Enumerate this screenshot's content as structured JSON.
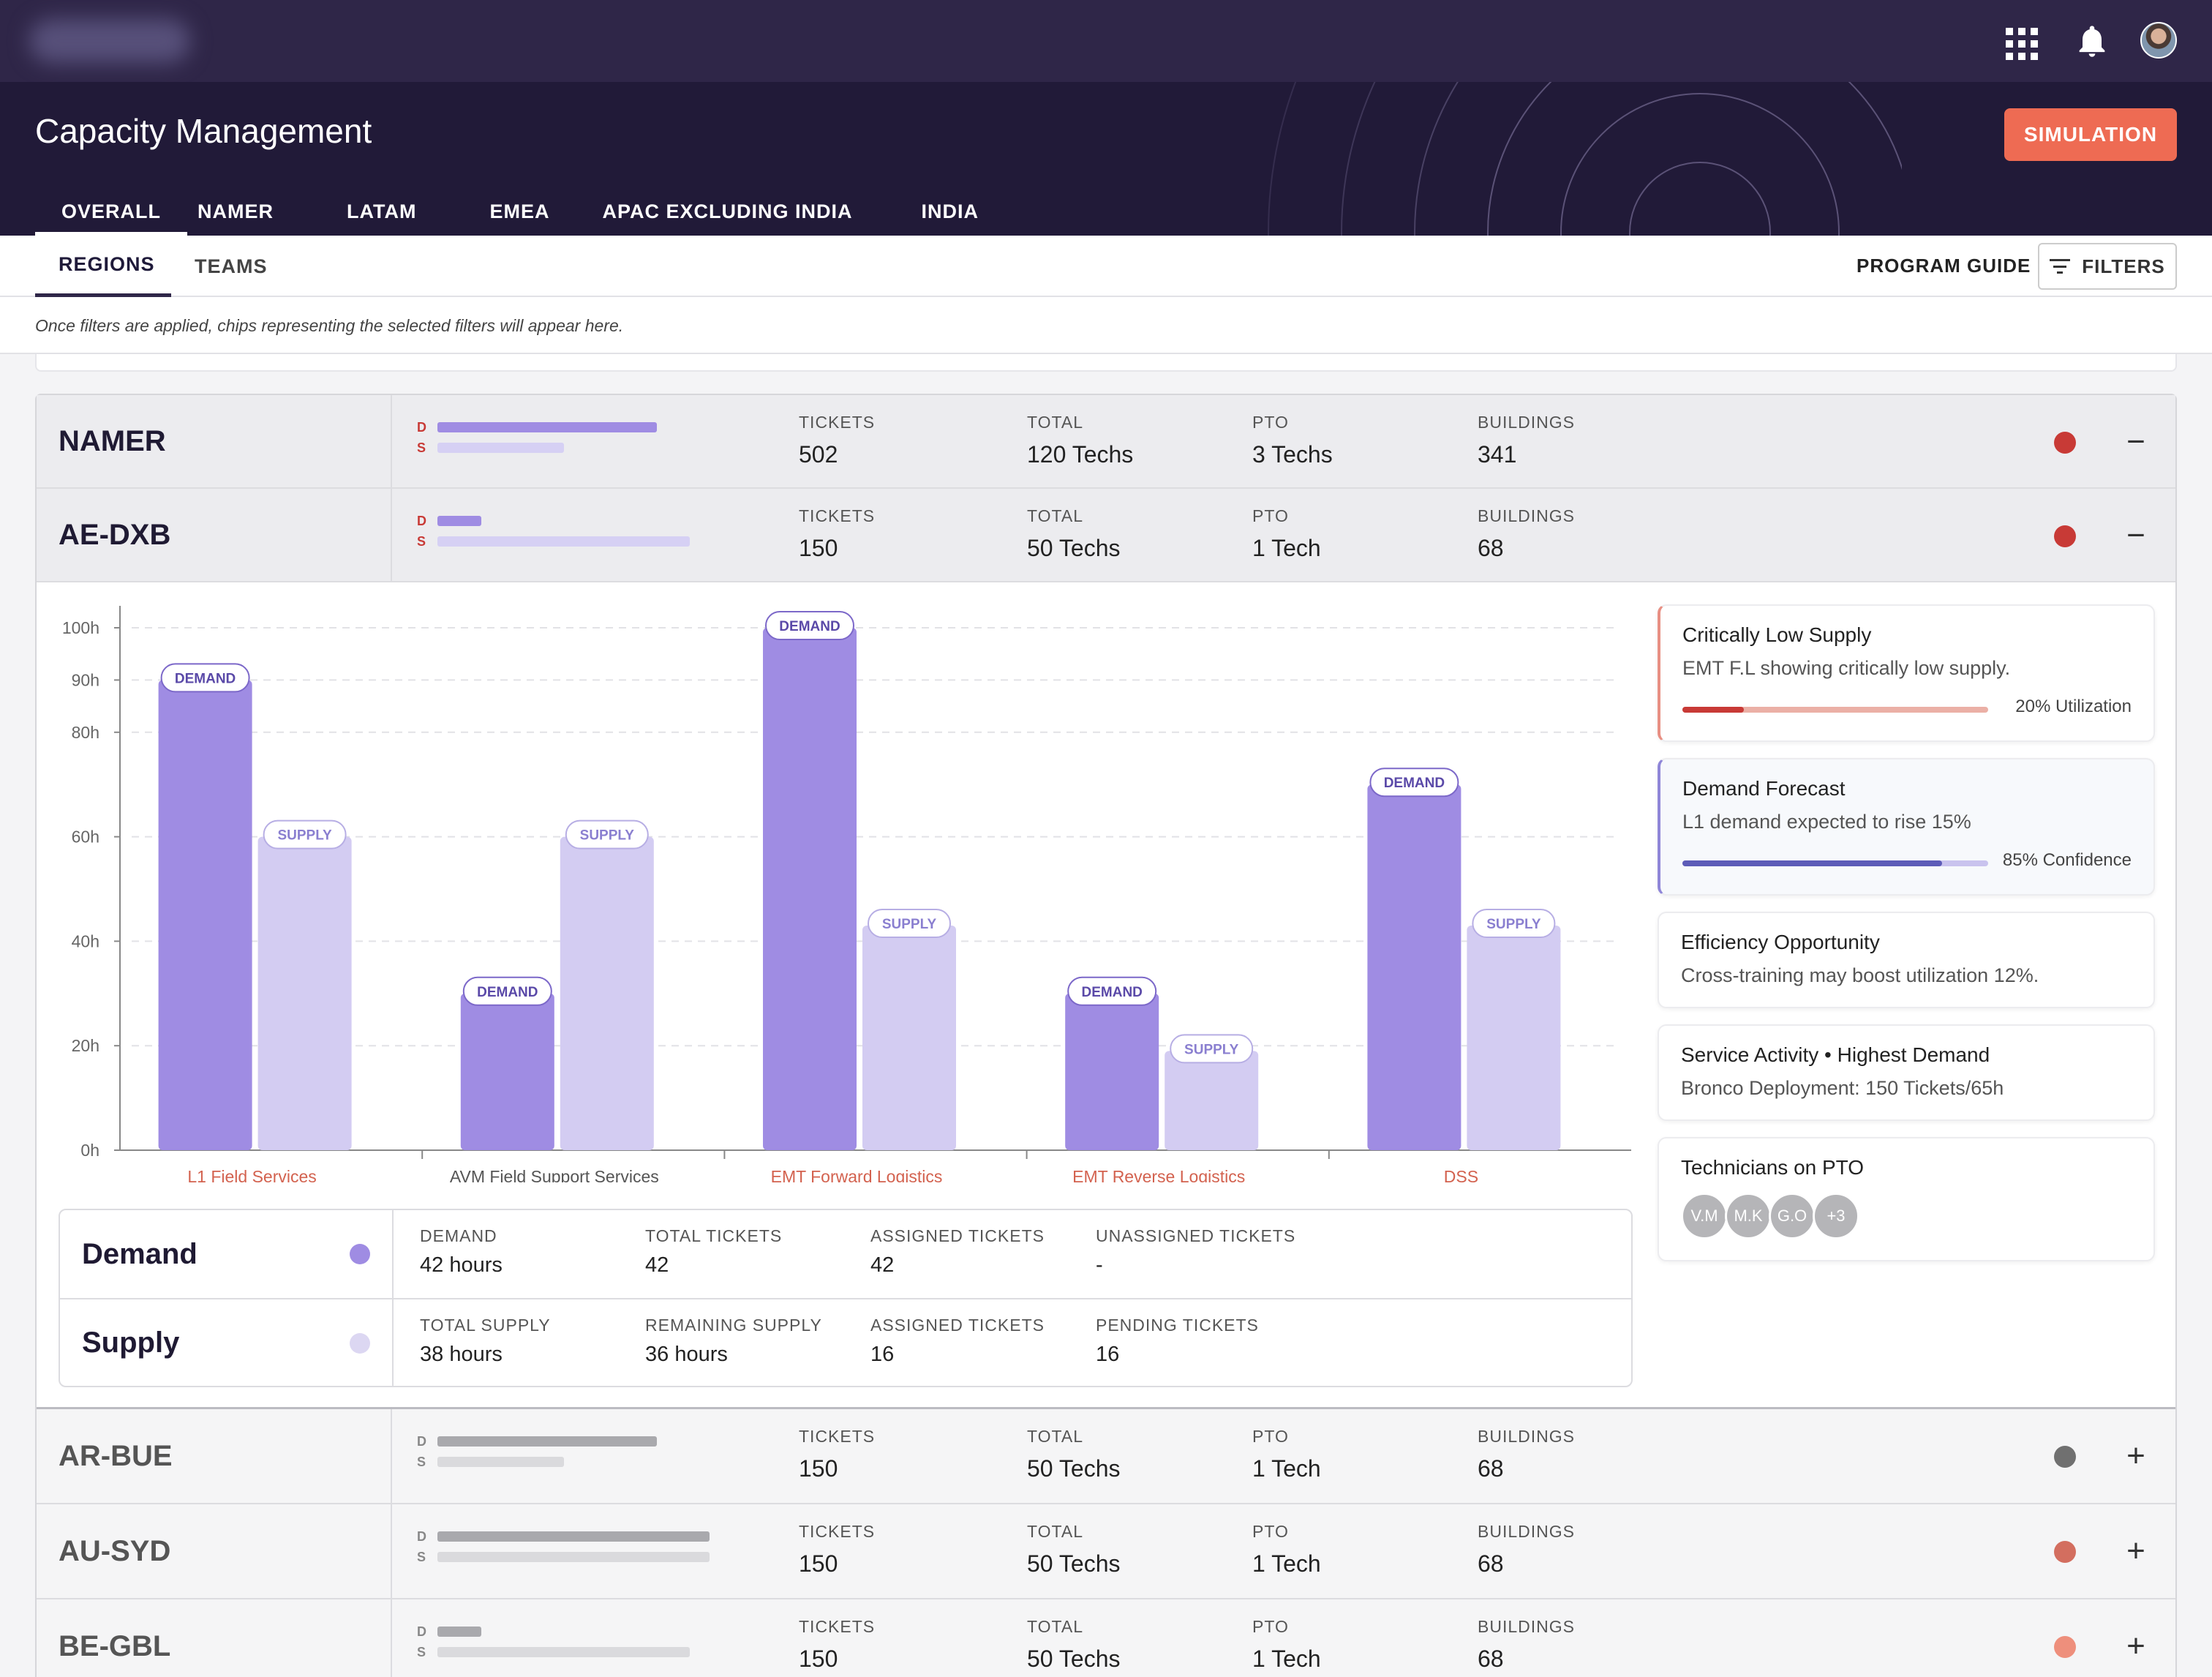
{
  "header": {
    "title": "Capacity Management",
    "simulation_label": "SIMULATION",
    "region_tabs": [
      "OVERALL",
      "NAMER",
      "LATAM",
      "EMEA",
      "APAC EXCLUDING INDIA",
      "INDIA"
    ]
  },
  "subnav": {
    "tabs": [
      "REGIONS",
      "TEAMS"
    ],
    "program_guide": "PROGRAM GUIDE",
    "filters": "FILTERS",
    "hint": "Once filters are applied, chips representing the selected filters will appear here."
  },
  "stat_labels": {
    "tickets": "TICKETS",
    "total": "TOTAL",
    "pto": "PTO",
    "buildings": "BUILDINGS"
  },
  "ds_labels": {
    "d": "D",
    "s": "S"
  },
  "rows": [
    {
      "name": "NAMER",
      "tickets": "502",
      "total": "120 Techs",
      "pto": "3 Techs",
      "buildings": "341",
      "status_color": "#c83a36",
      "toggle": "−",
      "demand_fraction": 0.4,
      "supply_fraction": 0.23
    },
    {
      "name": "AE-DXB",
      "tickets": "150",
      "total": "50 Techs",
      "pto": "1 Tech",
      "buildings": "68",
      "status_color": "#c83a36",
      "toggle": "−",
      "demand_fraction": 0.08,
      "supply_fraction": 0.46
    },
    {
      "name": "AR-BUE",
      "tickets": "150",
      "total": "50 Techs",
      "pto": "1 Tech",
      "buildings": "68",
      "status_color": "#707070",
      "toggle": "+",
      "demand_fraction": 0.4,
      "supply_fraction": 0.23
    },
    {
      "name": "AU-SYD",
      "tickets": "150",
      "total": "50 Techs",
      "pto": "1 Tech",
      "buildings": "68",
      "status_color": "#d36e5f",
      "toggle": "+",
      "demand_fraction": 0.5,
      "supply_fraction": 0.5
    },
    {
      "name": "BE-GBL",
      "tickets": "150",
      "total": "50 Techs",
      "pto": "1 Tech",
      "buildings": "68",
      "status_color": "#ee8f7c",
      "toggle": "+",
      "demand_fraction": 0.08,
      "supply_fraction": 0.46
    }
  ],
  "chart_data": {
    "type": "bar",
    "categories": [
      "L1 Field Services",
      "AVM Field Support Services",
      "EMT Forward Logistics",
      "EMT Reverse Logistics",
      "DSS"
    ],
    "category_label_colors": [
      "#d3624f",
      "#555555",
      "#d3624f",
      "#d3624f",
      "#d3624f"
    ],
    "series": [
      {
        "name": "DEMAND",
        "values": [
          90,
          30,
          100,
          30,
          70
        ],
        "color": "#9f8ce3"
      },
      {
        "name": "SUPPLY",
        "values": [
          60,
          60,
          43,
          19,
          43
        ],
        "color": "#d3ccf2"
      }
    ],
    "yticks": [
      "0h",
      "20h",
      "40h",
      "60h",
      "80h",
      "90h",
      "100h"
    ],
    "ytick_values": [
      0,
      20,
      40,
      60,
      80,
      90,
      100
    ],
    "ylim": [
      0,
      100
    ],
    "grid": true
  },
  "summary": {
    "demand": {
      "name": "Demand",
      "dot_color": "#9f8ce3",
      "stats": [
        {
          "label": "DEMAND",
          "value": "42 hours"
        },
        {
          "label": "TOTAL TICKETS",
          "value": "42"
        },
        {
          "label": "ASSIGNED TICKETS",
          "value": "42"
        },
        {
          "label": "UNASSIGNED TICKETS",
          "value": "-"
        }
      ]
    },
    "supply": {
      "name": "Supply",
      "dot_color": "#dcd7f2",
      "stats": [
        {
          "label": "TOTAL SUPPLY",
          "value": "38 hours"
        },
        {
          "label": "REMAINING SUPPLY",
          "value": "36 hours"
        },
        {
          "label": "ASSIGNED TICKETS",
          "value": "16"
        },
        {
          "label": "PENDING TICKETS",
          "value": "16"
        }
      ]
    }
  },
  "insights": {
    "critical": {
      "title": "Critically Low Supply",
      "sub": "EMT F.L showing critically low supply.",
      "meter_text": "20% Utilization",
      "meter_fraction": 0.2,
      "accent": "#e88f83"
    },
    "forecast": {
      "title": "Demand Forecast",
      "sub": "L1 demand expected to rise 15%",
      "meter_text": "85% Confidence",
      "meter_fraction": 0.85,
      "accent": "#8f86d8"
    },
    "efficiency": {
      "title": "Efficiency Opportunity",
      "sub": "Cross-training may boost utilization 12%."
    },
    "service": {
      "title": "Service Activity • Highest Demand",
      "sub": "Bronco Deployment: 150 Tickets/65h"
    },
    "pto": {
      "title": "Technicians on PTO",
      "avatars": [
        "V.M",
        "M.K",
        "G.O",
        "+3"
      ]
    }
  }
}
